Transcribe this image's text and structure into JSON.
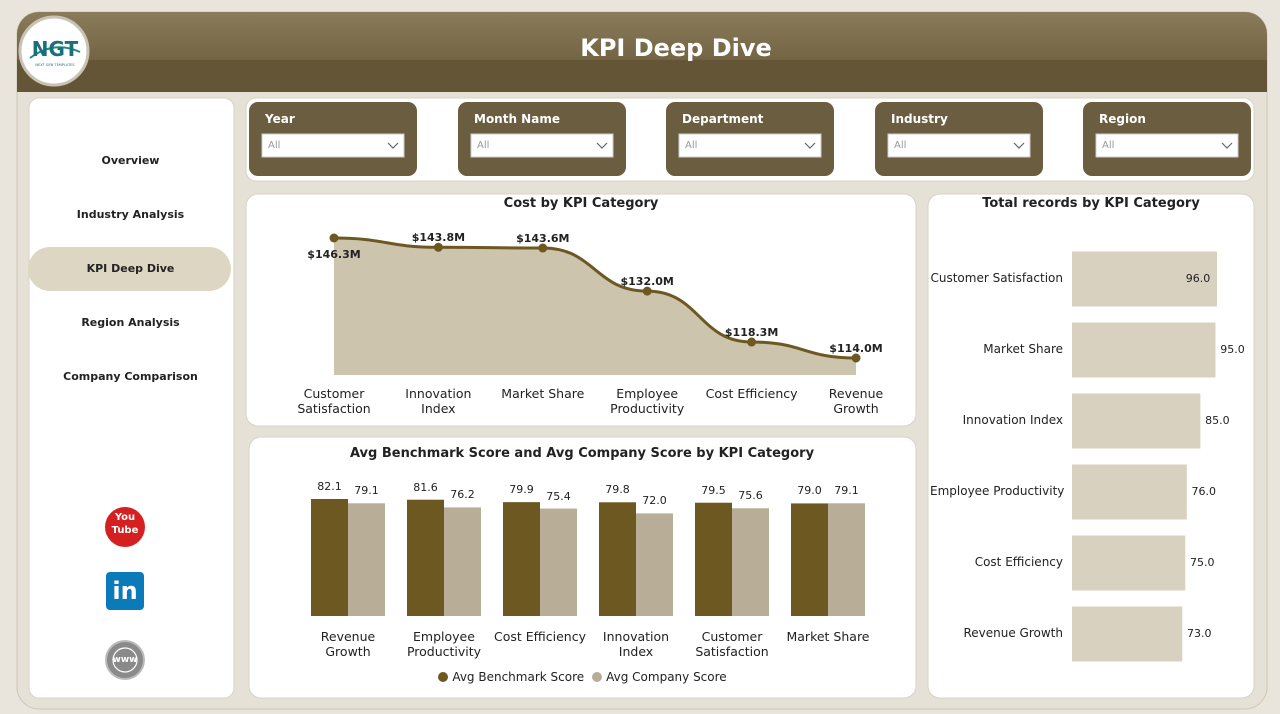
{
  "header": {
    "logo": "NGT",
    "logo_subtitle": "NEXT GEN TEMPLATES",
    "title": "KPI Deep Dive"
  },
  "navigation": {
    "items": [
      "Overview",
      "Industry Analysis",
      "KPI Deep Dive",
      "Region Analysis",
      "Company Comparison"
    ],
    "active": 2
  },
  "filters": [
    {
      "label": "Year",
      "value": "All"
    },
    {
      "label": "Month Name",
      "value": "All"
    },
    {
      "label": "Department",
      "value": "All"
    },
    {
      "label": "Industry",
      "value": "All"
    },
    {
      "label": "Region",
      "value": "All"
    }
  ],
  "social": {
    "youtube": [
      "You",
      "Tube"
    ],
    "linkedin": "in",
    "website": "www"
  },
  "chart_data": [
    {
      "type": "area",
      "title": "Cost by KPI Category",
      "categories": [
        "Customer Satisfaction",
        "Innovation Index",
        "Market Share",
        "Employee Productivity",
        "Cost Efficiency",
        "Revenue Growth"
      ],
      "values": [
        146.3,
        143.8,
        143.6,
        132.0,
        118.3,
        114.0
      ],
      "value_labels": [
        "$146.3M",
        "$143.8M",
        "$143.6M",
        "$132.0M",
        "$118.3M",
        "$114.0M"
      ],
      "color": "#6e5822",
      "fill": "#cdc4ae"
    },
    {
      "type": "grouped-bar",
      "title": "Avg Benchmark Score and Avg Company Score by KPI Category",
      "categories": [
        "Revenue Growth",
        "Employee Productivity",
        "Cost Efficiency",
        "Innovation Index",
        "Customer Satisfaction",
        "Market Share"
      ],
      "series": [
        {
          "name": "Avg Benchmark Score",
          "color": "#6e5822",
          "values": [
            82.1,
            81.6,
            79.9,
            79.8,
            79.5,
            79.0
          ],
          "value_labels": [
            "82.1",
            "81.6",
            "79.9",
            "79.8",
            "79.5",
            "79.0"
          ]
        },
        {
          "name": "Avg Company Score",
          "color": "#b8ae97",
          "values": [
            79.1,
            76.2,
            75.4,
            72.0,
            75.6,
            79.1
          ],
          "value_labels": [
            "79.1",
            "76.2",
            "75.4",
            "72.0",
            "75.6",
            "79.1"
          ]
        }
      ],
      "legend": "bottom"
    },
    {
      "type": "horizontal-bar",
      "title": "Total records by KPI Category",
      "categories": [
        "Customer Satisfaction",
        "Market Share",
        "Innovation Index",
        "Employee Productivity",
        "Cost Efficiency",
        "Revenue Growth"
      ],
      "values": [
        96.0,
        95.0,
        85.0,
        76.0,
        75.0,
        73.0
      ],
      "value_labels": [
        "96.0",
        "95.0",
        "85.0",
        "76.0",
        "75.0",
        "73.0"
      ],
      "color": "#d9d1bf"
    }
  ]
}
